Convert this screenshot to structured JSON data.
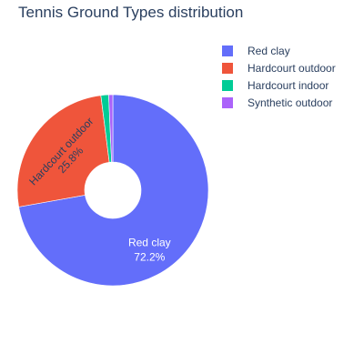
{
  "chart_data": {
    "type": "pie",
    "title": "Tennis Ground Types distribution",
    "hole": true,
    "legend_position": "top-right",
    "slices": [
      {
        "name": "Red clay",
        "percent": 72.2,
        "label": "Red clay",
        "value_label": "72.2%",
        "color": "#636efa"
      },
      {
        "name": "Hardcourt outdoor",
        "percent": 25.8,
        "label": "Hardcourt outdoor",
        "value_label": "25.8%",
        "color": "#ef553b"
      },
      {
        "name": "Hardcourt indoor",
        "percent": 1.3,
        "label": "",
        "value_label": "",
        "color": "#00cc96"
      },
      {
        "name": "Synthetic outdoor",
        "percent": 0.7,
        "label": "",
        "value_label": "",
        "color": "#ab63fa"
      }
    ]
  }
}
